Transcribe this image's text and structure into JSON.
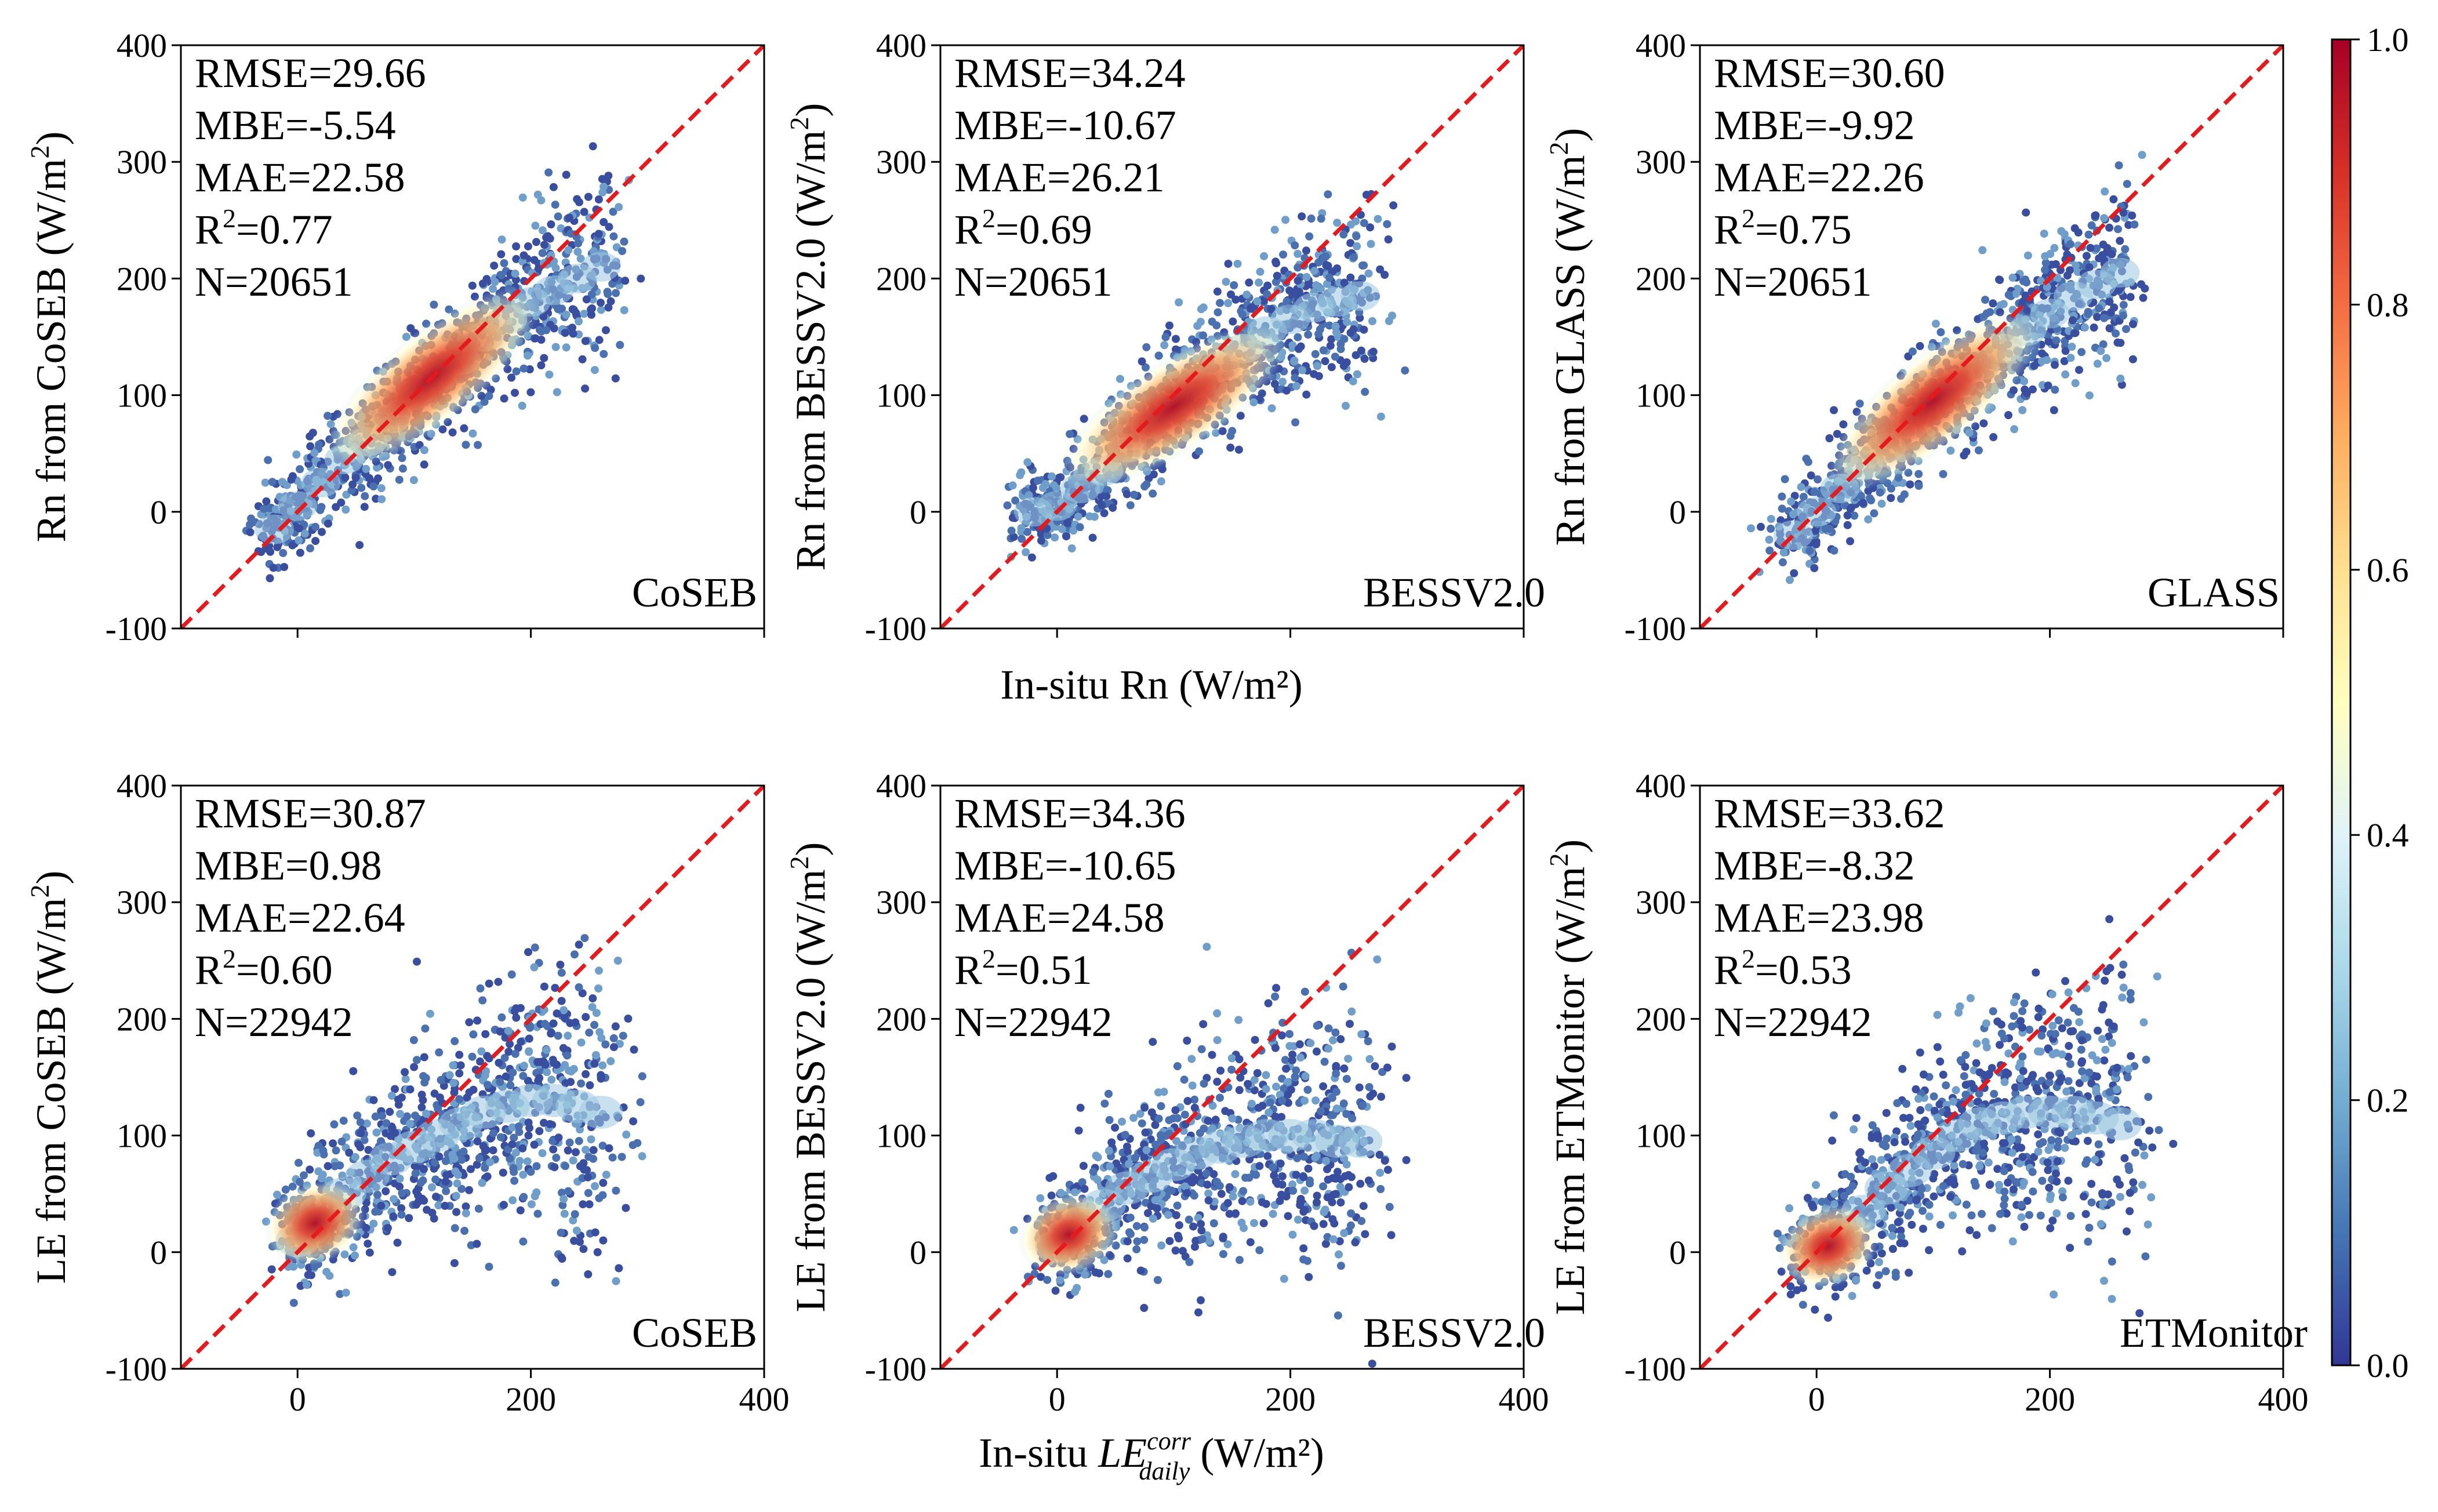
{
  "figure": {
    "x_label_top": "In-situ Rn (W/m²)",
    "x_label_bottom_prefix": "In-situ ",
    "x_label_bottom_var": "LE",
    "x_label_bottom_sup": "corr",
    "x_label_bottom_sub": "daily",
    "x_label_bottom_suffix": " (W/m²)",
    "colorbar": {
      "vmin": 0.0,
      "vmax": 1.0,
      "ticks": [
        "0.0",
        "0.2",
        "0.4",
        "0.6",
        "0.8",
        "1.0"
      ],
      "colormap": "RdYlBu_r",
      "colors": [
        "#313695",
        "#4575b4",
        "#74add1",
        "#abd9e9",
        "#e0f3f8",
        "#ffffbf",
        "#fee090",
        "#fdae61",
        "#f46d43",
        "#d73027",
        "#a50026"
      ]
    },
    "reference_line_color": "#e41a1c",
    "point_color_low": "#3a4ea0"
  },
  "chart_data": [
    {
      "type": "scatter",
      "panel": "a",
      "label": "CoSEB",
      "ylabel": "Rn from CoSEB (W/m²)",
      "xlabel": "",
      "xlim": [
        -100,
        400
      ],
      "ylim": [
        -100,
        400
      ],
      "xticks": [
        "0",
        "200",
        "400"
      ],
      "yticks": [
        "-100",
        "0",
        "100",
        "200",
        "300",
        "400"
      ],
      "show_xticklabels": false,
      "reference_line": "1:1",
      "stats": [
        "RMSE=29.66",
        "MBE=-5.54",
        "MAE=22.58",
        "R²=0.77",
        "N=20651"
      ],
      "density_points": [
        [
          -20,
          -15
        ],
        [
          0,
          5
        ],
        [
          20,
          25
        ],
        [
          40,
          45
        ],
        [
          60,
          60
        ],
        [
          80,
          80
        ],
        [
          100,
          100
        ],
        [
          120,
          115
        ],
        [
          140,
          130
        ],
        [
          160,
          150
        ],
        [
          180,
          165
        ],
        [
          200,
          180
        ],
        [
          220,
          190
        ],
        [
          240,
          200
        ],
        [
          260,
          210
        ]
      ],
      "core_peak": [
        115,
        115
      ]
    },
    {
      "type": "scatter",
      "panel": "b",
      "label": "BESSV2.0",
      "ylabel": "Rn from BESSV2.0 (W/m²)",
      "xlabel": "",
      "xlim": [
        -100,
        400
      ],
      "ylim": [
        -100,
        400
      ],
      "xticks": [
        "0",
        "200",
        "400"
      ],
      "yticks": [
        "-100",
        "0",
        "100",
        "200",
        "300",
        "400"
      ],
      "show_xticklabels": false,
      "reference_line": "1:1",
      "stats": [
        "RMSE=34.24",
        "MBE=-10.67",
        "MAE=26.21",
        "R²=0.69",
        "N=20651"
      ],
      "density_points": [
        [
          -20,
          0
        ],
        [
          0,
          5
        ],
        [
          20,
          20
        ],
        [
          40,
          35
        ],
        [
          60,
          55
        ],
        [
          80,
          75
        ],
        [
          100,
          90
        ],
        [
          120,
          110
        ],
        [
          140,
          125
        ],
        [
          160,
          140
        ],
        [
          180,
          155
        ],
        [
          200,
          165
        ],
        [
          220,
          175
        ],
        [
          240,
          180
        ],
        [
          260,
          185
        ]
      ],
      "core_peak": [
        100,
        90
      ]
    },
    {
      "type": "scatter",
      "panel": "c",
      "label": "GLASS",
      "ylabel": "Rn from GLASS (W/m²)",
      "xlabel": "",
      "xlim": [
        -100,
        400
      ],
      "ylim": [
        -100,
        400
      ],
      "xticks": [
        "0",
        "200",
        "400"
      ],
      "yticks": [
        "-100",
        "0",
        "100",
        "200",
        "300",
        "400"
      ],
      "show_xticklabels": false,
      "reference_line": "1:1",
      "stats": [
        "RMSE=30.60",
        "MBE=-9.92",
        "MAE=22.26",
        "R²=0.75",
        "N=20651"
      ],
      "density_points": [
        [
          -20,
          -20
        ],
        [
          0,
          0
        ],
        [
          20,
          20
        ],
        [
          40,
          40
        ],
        [
          60,
          55
        ],
        [
          80,
          75
        ],
        [
          100,
          95
        ],
        [
          120,
          110
        ],
        [
          140,
          125
        ],
        [
          160,
          140
        ],
        [
          180,
          155
        ],
        [
          200,
          170
        ],
        [
          220,
          185
        ],
        [
          240,
          195
        ],
        [
          260,
          205
        ]
      ],
      "core_peak": [
        100,
        95
      ]
    },
    {
      "type": "scatter",
      "panel": "d",
      "label": "CoSEB",
      "ylabel": "LE from CoSEB (W/m²)",
      "xlabel": "",
      "xlim": [
        -100,
        400
      ],
      "ylim": [
        -100,
        400
      ],
      "xticks": [
        "0",
        "200",
        "400"
      ],
      "yticks": [
        "-100",
        "0",
        "100",
        "200",
        "300",
        "400"
      ],
      "show_xticklabels": true,
      "reference_line": "1:1",
      "stats": [
        "RMSE=30.87",
        "MBE=0.98",
        "MAE=22.64",
        "R²=0.60",
        "N=22942"
      ],
      "density_points": [
        [
          0,
          10
        ],
        [
          10,
          20
        ],
        [
          20,
          35
        ],
        [
          40,
          50
        ],
        [
          60,
          65
        ],
        [
          80,
          80
        ],
        [
          100,
          90
        ],
        [
          120,
          100
        ],
        [
          140,
          110
        ],
        [
          160,
          120
        ],
        [
          180,
          125
        ],
        [
          200,
          130
        ],
        [
          220,
          130
        ],
        [
          240,
          125
        ],
        [
          260,
          120
        ]
      ],
      "core_peak": [
        15,
        25
      ]
    },
    {
      "type": "scatter",
      "panel": "e",
      "label": "BESSV2.0",
      "ylabel": "LE from BESSV2.0 (W/m²)",
      "xlabel": "",
      "xlim": [
        -100,
        400
      ],
      "ylim": [
        -100,
        400
      ],
      "xticks": [
        "0",
        "200",
        "400"
      ],
      "yticks": [
        "-100",
        "0",
        "100",
        "200",
        "300",
        "400"
      ],
      "show_xticklabels": true,
      "reference_line": "1:1",
      "stats": [
        "RMSE=34.36",
        "MBE=-10.65",
        "MAE=24.58",
        "R²=0.51",
        "N=22942"
      ],
      "density_points": [
        [
          0,
          5
        ],
        [
          10,
          15
        ],
        [
          20,
          25
        ],
        [
          40,
          40
        ],
        [
          60,
          55
        ],
        [
          80,
          65
        ],
        [
          100,
          75
        ],
        [
          120,
          85
        ],
        [
          140,
          90
        ],
        [
          160,
          95
        ],
        [
          180,
          100
        ],
        [
          200,
          100
        ],
        [
          220,
          100
        ],
        [
          240,
          95
        ],
        [
          260,
          95
        ]
      ],
      "core_peak": [
        10,
        15
      ]
    },
    {
      "type": "scatter",
      "panel": "f",
      "label": "ETMonitor",
      "ylabel": "LE from ETMonitor (W/m²)",
      "xlabel": "",
      "xlim": [
        -100,
        400
      ],
      "ylim": [
        -100,
        400
      ],
      "xticks": [
        "0",
        "200",
        "400"
      ],
      "yticks": [
        "-100",
        "0",
        "100",
        "200",
        "300",
        "400"
      ],
      "show_xticklabels": true,
      "reference_line": "1:1",
      "stats": [
        "RMSE=33.62",
        "MBE=-8.32",
        "MAE=23.98",
        "R²=0.53",
        "N=22942"
      ],
      "density_points": [
        [
          0,
          0
        ],
        [
          10,
          5
        ],
        [
          20,
          15
        ],
        [
          40,
          35
        ],
        [
          60,
          55
        ],
        [
          80,
          70
        ],
        [
          100,
          85
        ],
        [
          120,
          100
        ],
        [
          140,
          110
        ],
        [
          160,
          115
        ],
        [
          180,
          120
        ],
        [
          200,
          120
        ],
        [
          220,
          120
        ],
        [
          240,
          115
        ],
        [
          260,
          110
        ]
      ],
      "core_peak": [
        10,
        5
      ]
    }
  ]
}
